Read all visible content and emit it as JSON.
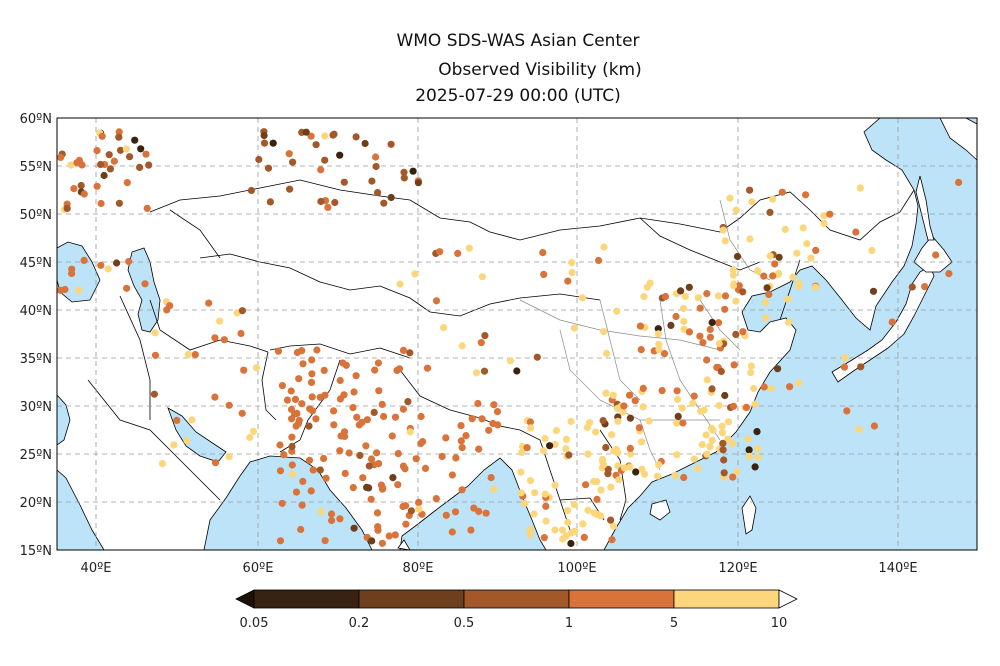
{
  "title": {
    "line1": "WMO SDS-WAS Asian Center",
    "line2": "Observed Visibility (km)",
    "line3": "2025-07-29 00:00 (UTC)"
  },
  "axes": {
    "lon_ticks": [
      {
        "v": 40,
        "label": "40ºE"
      },
      {
        "v": 60,
        "label": "60ºE"
      },
      {
        "v": 80,
        "label": "80ºE"
      },
      {
        "v": 100,
        "label": "100ºE"
      },
      {
        "v": 120,
        "label": "120ºE"
      },
      {
        "v": 140,
        "label": "140ºE"
      }
    ],
    "lat_ticks": [
      {
        "v": 15,
        "label": "15ºN"
      },
      {
        "v": 20,
        "label": "20ºN"
      },
      {
        "v": 25,
        "label": "25ºN"
      },
      {
        "v": 30,
        "label": "30ºN"
      },
      {
        "v": 35,
        "label": "35ºN"
      },
      {
        "v": 40,
        "label": "40ºN"
      },
      {
        "v": 45,
        "label": "45ºN"
      },
      {
        "v": 50,
        "label": "50ºN"
      },
      {
        "v": 55,
        "label": "55ºN"
      },
      {
        "v": 60,
        "label": "60ºN"
      }
    ],
    "lon_range": [
      35,
      150
    ],
    "lat_range": [
      15,
      60
    ],
    "grid": true
  },
  "colorbar": {
    "labels": [
      "0.05",
      "0.2",
      "0.5",
      "1",
      "5",
      "10"
    ],
    "colors": [
      "#3a2210",
      "#6e3f1c",
      "#a3582a",
      "#d9733a",
      "#fbd67a"
    ],
    "extend_low_color": "#1c1008",
    "extend_high_color": "#ffffff"
  },
  "colors": {
    "ocean": "#bde3f8",
    "land": "#ffffff",
    "border": "#000000",
    "province": "#8c8c8c",
    "grid": "#9a9a9a"
  }
}
